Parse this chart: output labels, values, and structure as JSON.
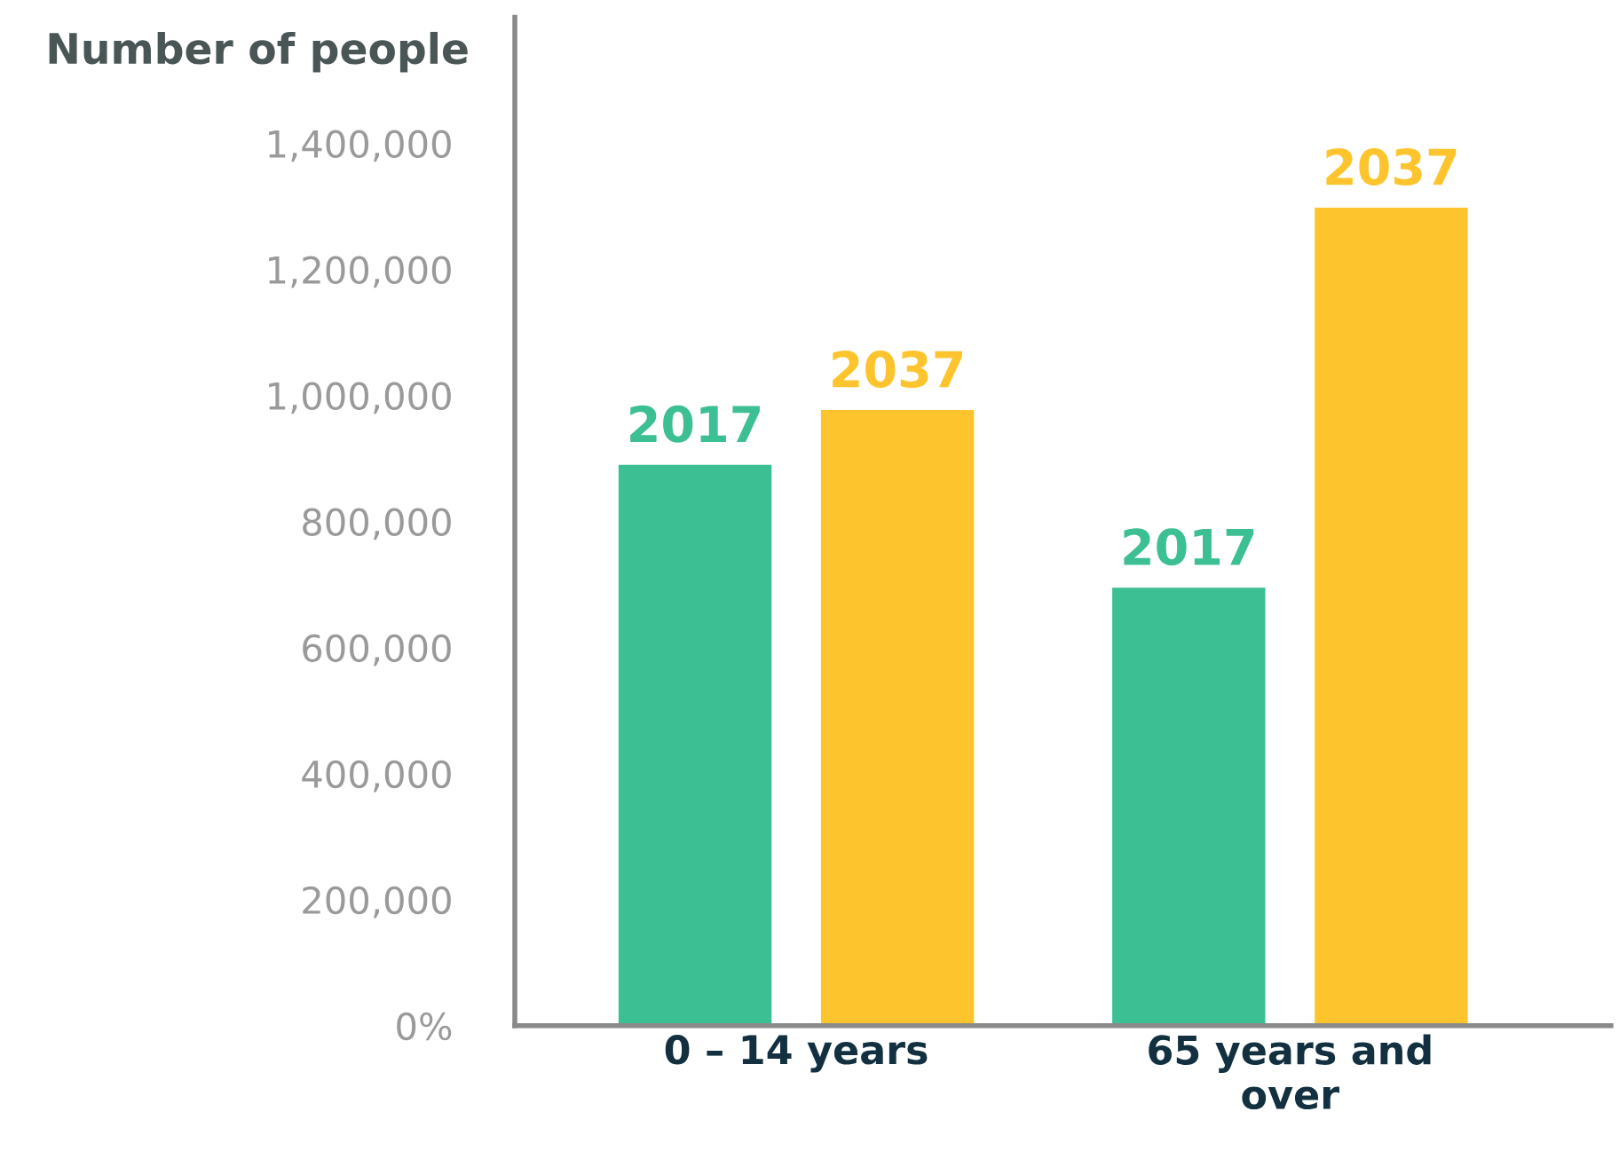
{
  "chart_data": {
    "type": "bar",
    "ylabel": "Number of people",
    "categories": [
      "0 – 14 years",
      "65 years and\nover"
    ],
    "series": [
      {
        "name": "2017",
        "color": "#3dbf94",
        "values": [
          890000,
          695000
        ]
      },
      {
        "name": "2037",
        "color": "#fdc42d",
        "values": [
          977000,
          1298000
        ]
      }
    ],
    "ylim": [
      0,
      1600000
    ],
    "yticks": [
      {
        "value": 0,
        "label": "0%"
      },
      {
        "value": 200000,
        "label": "200,000"
      },
      {
        "value": 400000,
        "label": "400,000"
      },
      {
        "value": 600000,
        "label": "600,000"
      },
      {
        "value": 800000,
        "label": "800,000"
      },
      {
        "value": 1000000,
        "label": "1,000,000"
      },
      {
        "value": 1200000,
        "label": "1,200,000"
      },
      {
        "value": 1400000,
        "label": "1,400,000"
      }
    ],
    "grid": false,
    "legend": false
  }
}
